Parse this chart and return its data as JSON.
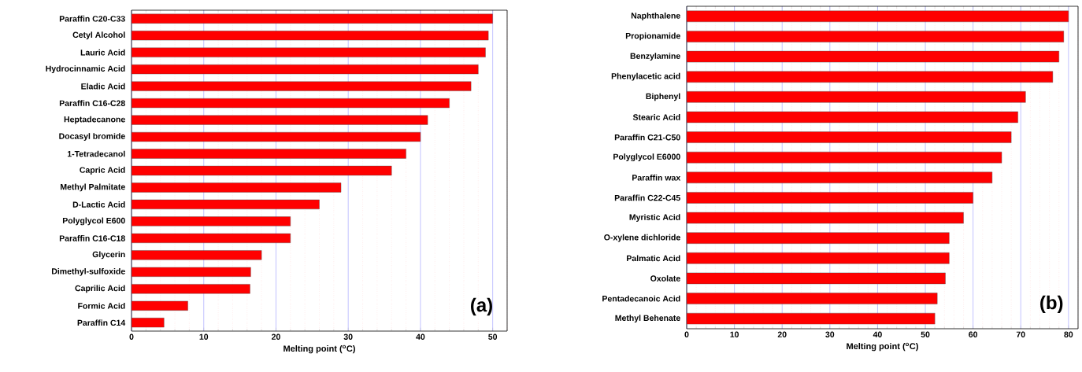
{
  "chart_data": [
    {
      "type": "bar",
      "orientation": "horizontal",
      "xlabel": "Melting point ($^{o}$C)",
      "categories": [
        "Paraffin C20-C33",
        "Cetyl Alcohol",
        "Lauric Acid",
        "Hydrocinnamic Acid",
        "Eladic Acid",
        "Paraffin C16-C28",
        "Heptadecanone",
        "Docasyl bromide",
        "1-Tetradecanol",
        "Capric Acid",
        "Methyl Palmitate",
        "D-Lactic Acid",
        "Polyglycol E600",
        "Paraffin C16-C18",
        "Glycerin",
        "Dimethyl-sulfoxide",
        "Caprilic Acid",
        "Formic Acid",
        "Paraffin C14"
      ],
      "values": [
        50,
        49.4,
        49,
        48,
        47,
        44,
        41,
        40,
        38,
        36,
        29,
        26,
        22,
        22,
        18,
        16.5,
        16.4,
        7.8,
        4.5
      ],
      "color": "#ff0000",
      "xlim": [
        0,
        52
      ],
      "xticks": [
        0,
        {
          "value": 2,
          "label": null
        },
        {
          "value": 4,
          "label": null
        },
        {
          "value": 6,
          "label": null
        },
        {
          "value": 8,
          "label": null
        },
        10,
        {
          "value": 12,
          "label": null
        },
        {
          "value": 14,
          "label": null
        },
        {
          "value": 16,
          "label": null
        },
        {
          "value": 18,
          "label": null
        },
        20,
        {
          "value": 22,
          "label": null
        },
        {
          "value": 24,
          "label": null
        },
        {
          "value": 26,
          "label": null
        },
        {
          "value": 28,
          "label": null
        },
        30,
        {
          "value": 32,
          "label": null
        },
        {
          "value": 34,
          "label": null
        },
        {
          "value": 36,
          "label": null
        },
        {
          "value": 38,
          "label": null
        },
        40,
        {
          "value": 42,
          "label": null
        },
        {
          "value": 44,
          "label": null
        },
        {
          "value": 46,
          "label": null
        },
        {
          "value": 48,
          "label": null
        },
        50,
        {
          "value": 52,
          "label": null
        }
      ],
      "grid": "x",
      "annotations": [
        "(a)"
      ]
    },
    {
      "type": "bar",
      "orientation": "horizontal",
      "xlabel": "Melting point ($^{o}$C)",
      "categories": [
        "Naphthalene",
        "Propionamide",
        "Benzylamine",
        "Phenylacetic acid",
        "Biphenyl",
        "Stearic Acid",
        "Paraffin C21-C50",
        "Polyglycol E6000",
        "Paraffin wax",
        "Paraffin C22-C45",
        "Myristic Acid",
        "O-xylene dichloride",
        "Palmatic Acid",
        "Oxolate",
        "Pentadecanoic Acid",
        "Methyl Behenate"
      ],
      "values": [
        80,
        79,
        78,
        76.7,
        71,
        69.4,
        68,
        66,
        64,
        60,
        58,
        55,
        55,
        54.2,
        52.5,
        52
      ],
      "color": "#ff0000",
      "xlim": [
        0,
        82
      ],
      "xticks": [
        0,
        {
          "value": 2,
          "label": null
        },
        {
          "value": 4,
          "label": null
        },
        {
          "value": 6,
          "label": null
        },
        {
          "value": 8,
          "label": null
        },
        10,
        {
          "value": 12,
          "label": null
        },
        {
          "value": 14,
          "label": null
        },
        {
          "value": 16,
          "label": null
        },
        {
          "value": 18,
          "label": null
        },
        20,
        {
          "value": 22,
          "label": null
        },
        {
          "value": 24,
          "label": null
        },
        {
          "value": 26,
          "label": null
        },
        {
          "value": 28,
          "label": null
        },
        30,
        {
          "value": 32,
          "label": null
        },
        {
          "value": 34,
          "label": null
        },
        {
          "value": 36,
          "label": null
        },
        {
          "value": 38,
          "label": null
        },
        40,
        {
          "value": 42,
          "label": null
        },
        {
          "value": 44,
          "label": null
        },
        {
          "value": 46,
          "label": null
        },
        {
          "value": 48,
          "label": null
        },
        50,
        {
          "value": 52,
          "label": null
        },
        {
          "value": 54,
          "label": null
        },
        {
          "value": 56,
          "label": null
        },
        {
          "value": 58,
          "label": null
        },
        60,
        {
          "value": 62,
          "label": null
        },
        {
          "value": 64,
          "label": null
        },
        {
          "value": 66,
          "label": null
        },
        {
          "value": 68,
          "label": null
        },
        70,
        {
          "value": 72,
          "label": null
        },
        {
          "value": 74,
          "label": null
        },
        {
          "value": 76,
          "label": null
        },
        {
          "value": 78,
          "label": null
        },
        80,
        {
          "value": 82,
          "label": null
        }
      ],
      "grid": "x",
      "annotations": [
        "(b)"
      ]
    }
  ]
}
